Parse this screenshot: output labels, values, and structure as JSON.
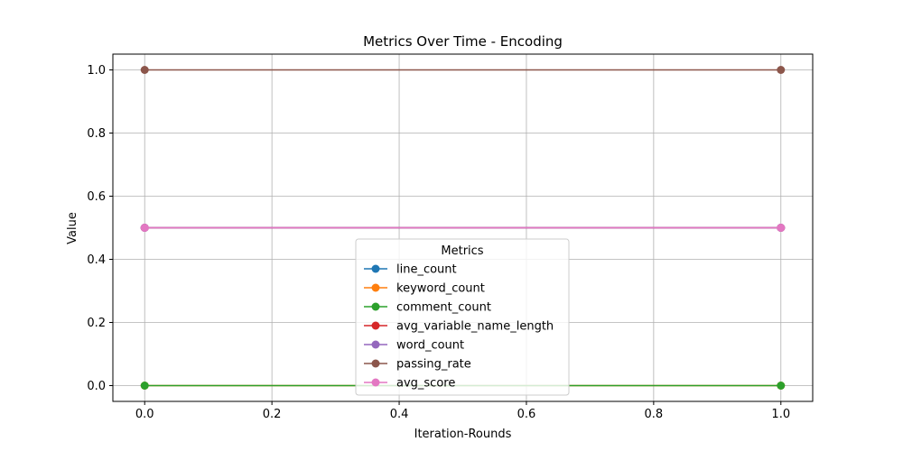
{
  "chart_data": {
    "type": "line",
    "title": "Metrics Over Time - Encoding",
    "xlabel": "Iteration-Rounds",
    "ylabel": "Value",
    "xlim": [
      -0.05,
      1.05
    ],
    "ylim": [
      -0.05,
      1.05
    ],
    "xticks": [
      0.0,
      0.2,
      0.4,
      0.6,
      0.8,
      1.0
    ],
    "xtick_labels": [
      "0.0",
      "0.2",
      "0.4",
      "0.6",
      "0.8",
      "1.0"
    ],
    "yticks": [
      0.0,
      0.2,
      0.4,
      0.6,
      0.8,
      1.0
    ],
    "ytick_labels": [
      "0.0",
      "0.2",
      "0.4",
      "0.6",
      "0.8",
      "1.0"
    ],
    "grid": true,
    "legend": {
      "title": "Metrics",
      "placement": "lower-center"
    },
    "x": [
      0,
      1
    ],
    "series": [
      {
        "name": "line_count",
        "color": "#1f77b4",
        "values": [
          0.5,
          0.5
        ]
      },
      {
        "name": "keyword_count",
        "color": "#ff7f0e",
        "values": [
          0.0,
          0.0
        ]
      },
      {
        "name": "comment_count",
        "color": "#2ca02c",
        "values": [
          0.0,
          0.0
        ]
      },
      {
        "name": "avg_variable_name_length",
        "color": "#d62728",
        "values": [
          0.5,
          0.5
        ]
      },
      {
        "name": "word_count",
        "color": "#9467bd",
        "values": [
          0.5,
          0.5
        ]
      },
      {
        "name": "passing_rate",
        "color": "#8c564b",
        "values": [
          1.0,
          1.0
        ]
      },
      {
        "name": "avg_score",
        "color": "#e377c2",
        "values": [
          0.5,
          0.5
        ]
      }
    ]
  }
}
